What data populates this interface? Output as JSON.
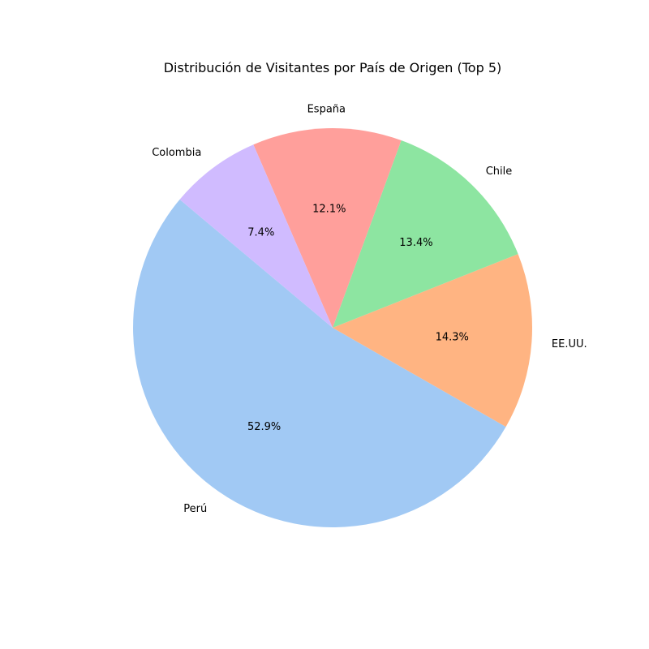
{
  "chart_data": {
    "type": "pie",
    "title": "Distribución de Visitantes por País de Origen (Top 5)",
    "categories": [
      "Perú",
      "EE.UU.",
      "Chile",
      "España",
      "Colombia"
    ],
    "values": [
      52.9,
      14.3,
      13.4,
      12.1,
      7.4
    ],
    "value_labels": [
      "52.9%",
      "14.3%",
      "13.4%",
      "12.1%",
      "7.4%"
    ],
    "colors": [
      "#a1c9f4",
      "#ffb482",
      "#8de5a1",
      "#ff9f9b",
      "#d0bbff"
    ],
    "start_angle_deg": 140,
    "direction": "counterclockwise",
    "legend": "none",
    "grid": false
  }
}
